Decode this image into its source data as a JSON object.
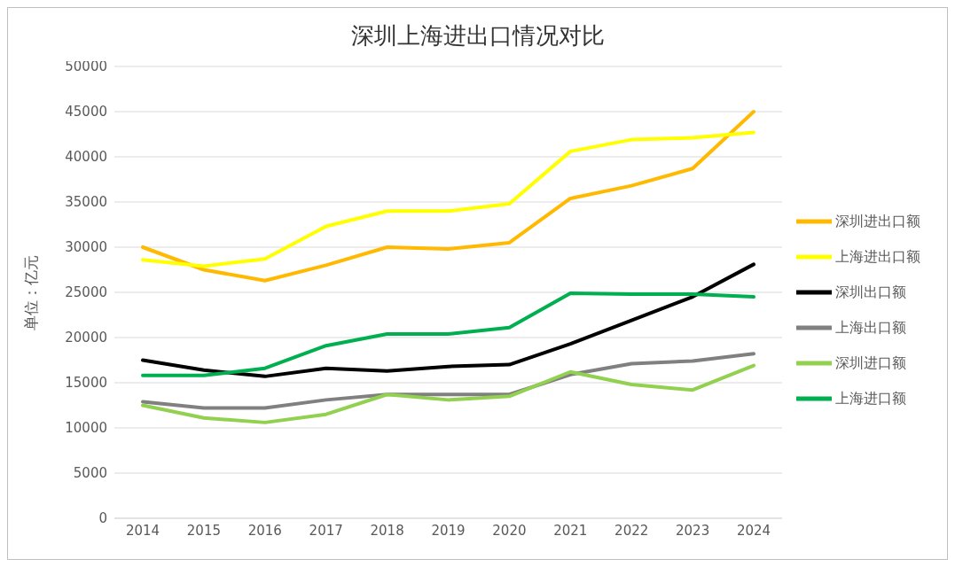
{
  "chart_data": {
    "type": "line",
    "title": "深圳上海进出口情况对比",
    "ylabel": "单位：亿元",
    "categories": [
      "2014",
      "2015",
      "2016",
      "2017",
      "2018",
      "2019",
      "2020",
      "2021",
      "2022",
      "2023",
      "2024"
    ],
    "series": [
      {
        "name": "深圳进出口额",
        "color": "#ffb900",
        "values": [
          30000,
          27500,
          26300,
          28000,
          30000,
          29800,
          30500,
          35400,
          36800,
          38700,
          45000
        ]
      },
      {
        "name": "上海进出口额",
        "color": "#ffff00",
        "values": [
          28600,
          27900,
          28700,
          32300,
          34000,
          34000,
          34800,
          40600,
          41900,
          42100,
          42700
        ]
      },
      {
        "name": "深圳出口额",
        "color": "#000000",
        "values": [
          17500,
          16400,
          15700,
          16600,
          16300,
          16800,
          17000,
          19300,
          21900,
          24500,
          28100
        ]
      },
      {
        "name": "上海出口额",
        "color": "#808080",
        "values": [
          12900,
          12200,
          12200,
          13100,
          13700,
          13700,
          13700,
          15900,
          17100,
          17400,
          18200
        ]
      },
      {
        "name": "深圳进口额",
        "color": "#92d050",
        "values": [
          12500,
          11100,
          10600,
          11500,
          13700,
          13100,
          13500,
          16200,
          14800,
          14200,
          16900
        ]
      },
      {
        "name": "上海进口额",
        "color": "#00b050",
        "values": [
          15800,
          15800,
          16600,
          19100,
          20400,
          20400,
          21100,
          24900,
          24800,
          24800,
          24500
        ]
      }
    ],
    "ylim": [
      0,
      50000
    ],
    "yticks": [
      0,
      5000,
      10000,
      15000,
      20000,
      25000,
      30000,
      35000,
      40000,
      45000,
      50000
    ],
    "grid": "y",
    "legend": "right",
    "marker": "none",
    "line_style": "solid"
  }
}
